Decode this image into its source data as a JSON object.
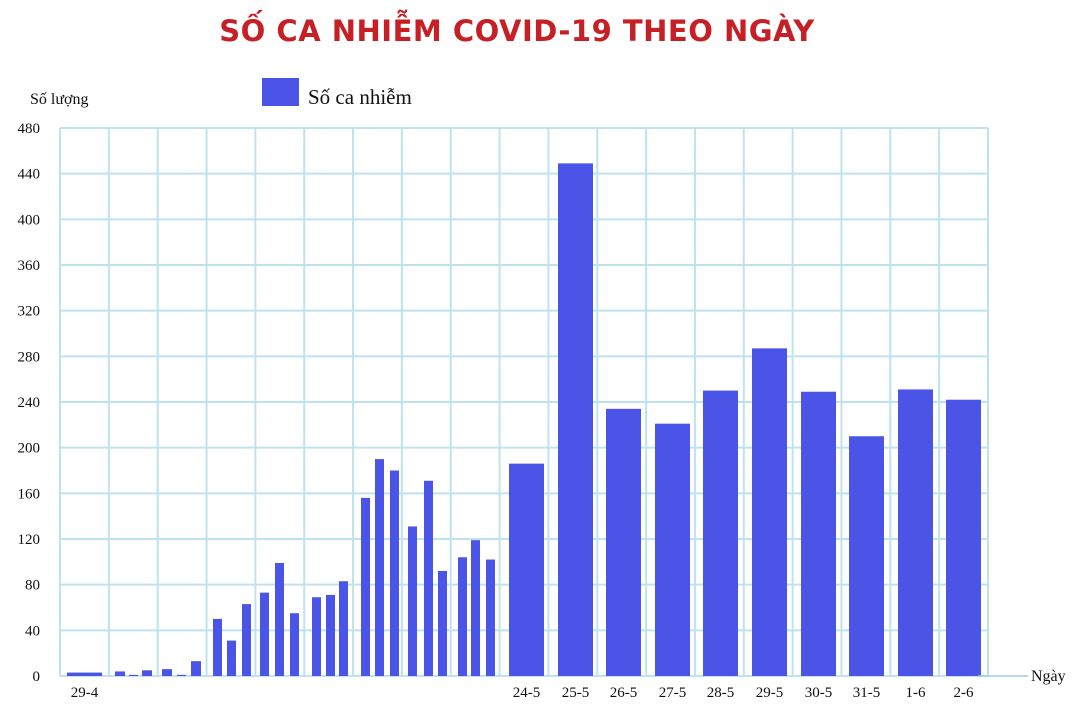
{
  "chart_data": {
    "type": "bar",
    "title": "SỐ CA NHIỄM COVID-19 THEO NGÀY",
    "ylabel": "Số lượng",
    "xlabel": "Ngày",
    "ylim": [
      0,
      480
    ],
    "yticks": [
      0,
      40,
      80,
      120,
      160,
      200,
      240,
      280,
      320,
      360,
      400,
      440,
      480
    ],
    "grid": true,
    "legend_position": "top-left",
    "bar_color": "#4a55e8",
    "grid_color": "#bfe3ee",
    "title_color": "#c62026",
    "series": [
      {
        "name": "Số ca nhiễm",
        "values": [
          3,
          0,
          4,
          1,
          5,
          0,
          6,
          1,
          13,
          0,
          50,
          31,
          63,
          73,
          99,
          55,
          0,
          69,
          71,
          83,
          0,
          156,
          190,
          180,
          131,
          171,
          92,
          104,
          119,
          102,
          186,
          449,
          234,
          221,
          250,
          287,
          249,
          210,
          251,
          242
        ]
      }
    ],
    "categories": [
      "29-4",
      "",
      "",
      "",
      "",
      "",
      "",
      "",
      "",
      "",
      "",
      "",
      "",
      "",
      "",
      "",
      "",
      "",
      "",
      "",
      "",
      "",
      "",
      "",
      "",
      "",
      "",
      "",
      "",
      "",
      "24-5",
      "25-5",
      "26-5",
      "27-5",
      "28-5",
      "29-5",
      "30-5",
      "31-5",
      "1-6",
      "2-6"
    ]
  }
}
